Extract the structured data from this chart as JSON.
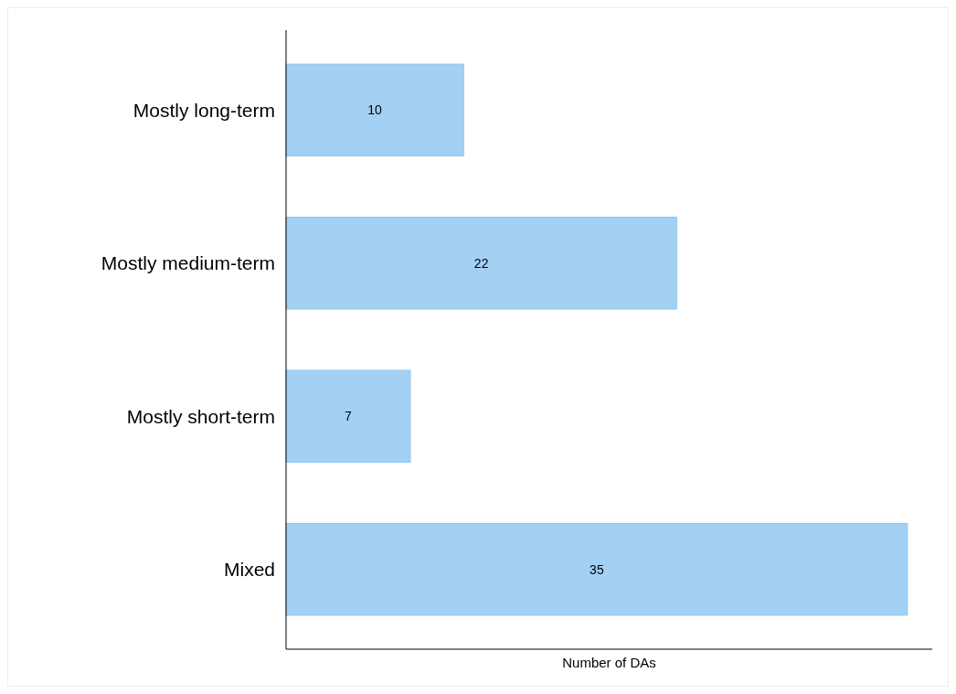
{
  "chart_data": {
    "type": "bar",
    "orientation": "horizontal",
    "categories": [
      "Mostly long-term",
      "Mostly medium-term",
      "Mostly short-term",
      "Mixed"
    ],
    "values": [
      10,
      22,
      7,
      35
    ],
    "color": "#a3d0f3",
    "xlabel": "Number of DAs",
    "data_labels": true
  }
}
